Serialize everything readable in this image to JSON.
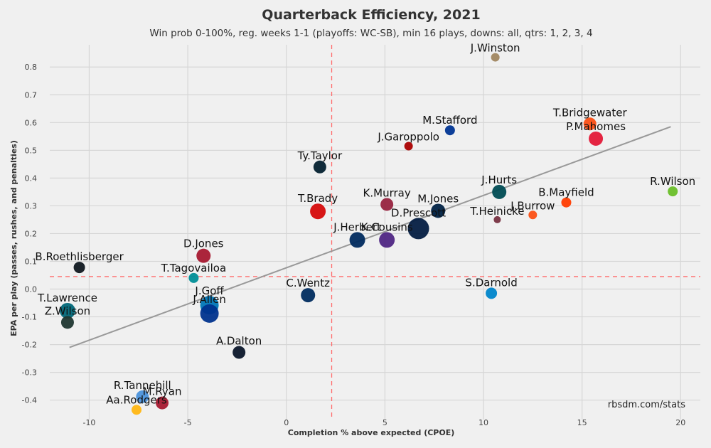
{
  "chart_data": {
    "type": "scatter",
    "title": "Quarterback Efficiency, 2021",
    "subtitle": "Win prob 0-100%, reg. weeks 1-1 (playoffs: WC-SB), min 16 plays, downs: all, qtrs: 1, 2, 3, 4",
    "xlabel": "Completion % above expected (CPOE)",
    "ylabel": "EPA per play (passes, rushes, and penalties)",
    "caption": "rbsdm.com/stats",
    "xlim": [
      -12,
      21
    ],
    "ylim": [
      -0.47,
      0.88
    ],
    "x_ticks": [
      -10,
      -5,
      0,
      5,
      10,
      15,
      20
    ],
    "x_tick_labels": [
      "-10",
      "-5",
      "0",
      "5",
      "10",
      "15",
      "20"
    ],
    "y_ticks": [
      -0.4,
      -0.3,
      -0.2,
      -0.1,
      0.0,
      0.1,
      0.2,
      0.3,
      0.4,
      0.5,
      0.6,
      0.7,
      0.8
    ],
    "y_tick_labels": [
      "-0.4",
      "-0.3",
      "-0.2",
      "-0.1",
      "0.0",
      "0.1",
      "0.2",
      "0.3",
      "0.4",
      "0.5",
      "0.6",
      "0.7",
      "0.8"
    ],
    "grid": true,
    "mean_lines": {
      "x": 2.3,
      "y": 0.045,
      "color": "#ff6b6b"
    },
    "trend_line": {
      "x1": -11.0,
      "y1": -0.21,
      "x2": 19.5,
      "y2": 0.585,
      "color": "#999999"
    },
    "points": [
      {
        "name": "J.Winston",
        "x": 10.6,
        "y": 0.835,
        "size": 6,
        "color": "#a08660"
      },
      {
        "name": "T.Bridgewater",
        "x": 15.4,
        "y": 0.595,
        "size": 9,
        "color": "#fb4f14"
      },
      {
        "name": "P.Mahomes",
        "x": 15.7,
        "y": 0.542,
        "size": 10,
        "color": "#e31837"
      },
      {
        "name": "M.Stafford",
        "x": 8.3,
        "y": 0.572,
        "size": 7,
        "color": "#003594"
      },
      {
        "name": "J.Garoppolo",
        "x": 6.2,
        "y": 0.515,
        "size": 6,
        "color": "#aa0000"
      },
      {
        "name": "Ty.Taylor",
        "x": 1.7,
        "y": 0.44,
        "size": 9,
        "color": "#03202f"
      },
      {
        "name": "J.Hurts",
        "x": 10.8,
        "y": 0.35,
        "size": 10,
        "color": "#004c54"
      },
      {
        "name": "R.Wilson",
        "x": 19.6,
        "y": 0.352,
        "size": 7,
        "color": "#69be28"
      },
      {
        "name": "K.Murray",
        "x": 5.1,
        "y": 0.305,
        "size": 9,
        "color": "#97233f"
      },
      {
        "name": "B.Mayfield",
        "x": 14.2,
        "y": 0.312,
        "size": 7,
        "color": "#ff3c00"
      },
      {
        "name": "T.Brady",
        "x": 1.6,
        "y": 0.28,
        "size": 11,
        "color": "#d50a0a"
      },
      {
        "name": "M.Jones",
        "x": 7.7,
        "y": 0.282,
        "size": 10,
        "color": "#002244"
      },
      {
        "name": "J.Burrow",
        "x": 12.5,
        "y": 0.267,
        "size": 6,
        "color": "#fb4f14"
      },
      {
        "name": "T.Heinicke",
        "x": 10.7,
        "y": 0.25,
        "size": 5,
        "color": "#773141"
      },
      {
        "name": "D.Prescott",
        "x": 6.7,
        "y": 0.218,
        "size": 15,
        "color": "#041e42"
      },
      {
        "name": "J.Herbert",
        "x": 3.6,
        "y": 0.177,
        "size": 11,
        "color": "#002a5e"
      },
      {
        "name": "K.Cousins",
        "x": 5.1,
        "y": 0.177,
        "size": 11,
        "color": "#4f2683"
      },
      {
        "name": "D.Jones",
        "x": -4.2,
        "y": 0.12,
        "size": 10,
        "color": "#a71930"
      },
      {
        "name": "B.Roethlisberger",
        "x": -10.5,
        "y": 0.078,
        "size": 8,
        "color": "#101820"
      },
      {
        "name": "T.Tagovailoa",
        "x": -4.7,
        "y": 0.04,
        "size": 7,
        "color": "#008e97"
      },
      {
        "name": "C.Wentz",
        "x": 1.1,
        "y": -0.022,
        "size": 10,
        "color": "#002c5f"
      },
      {
        "name": "S.Darnold",
        "x": 10.4,
        "y": -0.015,
        "size": 8,
        "color": "#0085ca"
      },
      {
        "name": "J.Goff",
        "x": -3.9,
        "y": -0.058,
        "size": 13,
        "color": "#0076b6"
      },
      {
        "name": "T.Lawrence",
        "x": -11.1,
        "y": -0.078,
        "size": 11,
        "color": "#006778"
      },
      {
        "name": "J.Allen",
        "x": -3.9,
        "y": -0.088,
        "size": 13,
        "color": "#00338d"
      },
      {
        "name": "Z.Wilson",
        "x": -11.1,
        "y": -0.12,
        "size": 9,
        "color": "#203731"
      },
      {
        "name": "A.Dalton",
        "x": -2.4,
        "y": -0.228,
        "size": 9,
        "color": "#0b162a"
      },
      {
        "name": "R.Tannehill",
        "x": -7.3,
        "y": -0.388,
        "size": 9,
        "color": "#4b92db"
      },
      {
        "name": "M.Ryan",
        "x": -6.3,
        "y": -0.41,
        "size": 9,
        "color": "#a71930"
      },
      {
        "name": "Aa.Rodgers",
        "x": -7.6,
        "y": -0.435,
        "size": 7,
        "color": "#ffb612"
      }
    ]
  }
}
